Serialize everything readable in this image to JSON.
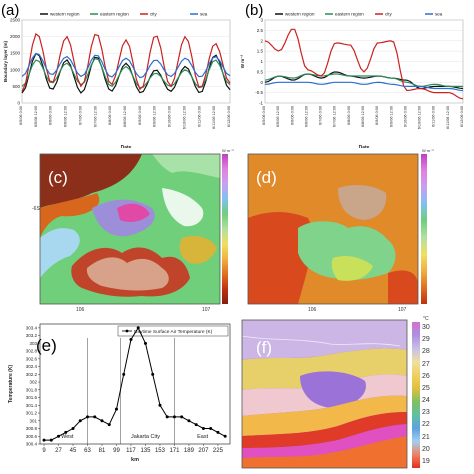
{
  "panels": {
    "a": {
      "label": "(a)",
      "ylabel": "Boundary layer (m)",
      "xlabel": "Date",
      "legend": [
        "western region",
        "eastern region",
        "city",
        "sea"
      ],
      "colors": {
        "western": "#111111",
        "eastern": "#2e8b57",
        "city": "#cc2020",
        "sea": "#2a6fd1"
      },
      "yticks": [
        "0",
        "500",
        "1000",
        "1500",
        "2000",
        "2500"
      ],
      "xticks": [
        "6/5/06 0:00",
        "6/5/06 12:00",
        "6/6/06 0:00",
        "6/6/06 12:00",
        "6/7/06 0:00",
        "6/7/06 12:00",
        "6/8/06 0:00",
        "6/8/06 12:00",
        "6/9/06 0:00",
        "6/9/06 12:00",
        "6/10/06 0:00",
        "6/10/06 12:00",
        "6/11/06 0:00",
        "6/11/06 12:00",
        "6/12/06 0:00"
      ]
    },
    "b": {
      "label": "(b)",
      "ylabel": "W m⁻²",
      "xlabel": "Date",
      "legend": [
        "western region",
        "eastern region",
        "city",
        "sea"
      ],
      "yticks": [
        "-1",
        "-0.5",
        "0",
        "0.5",
        "1",
        "1.5",
        "2",
        "2.5",
        "3"
      ],
      "xticks": [
        "6/5/06 0:00",
        "6/5/06 12:00",
        "6/6/06 0:00",
        "6/6/06 12:00",
        "6/7/06 0:00",
        "6/7/06 12:00",
        "6/8/06 0:00",
        "6/8/06 12:00",
        "6/9/06 0:00",
        "6/9/06 12:00",
        "6/10/06 0:00",
        "6/10/06 12:00",
        "6/11/06 0:00",
        "6/11/06 12:00",
        "6/12/06 0:00"
      ]
    },
    "c": {
      "label": "(c)",
      "unit": "W m⁻²",
      "scale": [
        "1450",
        "1400",
        "1350",
        "1300",
        "1250",
        "1200",
        "1150",
        "1100",
        "1050",
        "1000",
        "950",
        "900",
        "850",
        "800",
        "750",
        "700",
        "650",
        "600",
        "550",
        "500",
        "450",
        "400"
      ]
    },
    "d": {
      "label": "(d)",
      "unit": "W m⁻²",
      "scale": [
        "850",
        "800",
        "750",
        "700",
        "650",
        "600",
        "550",
        "500",
        "450",
        "400",
        "350",
        "300",
        "250",
        "200",
        "150",
        "100",
        "50"
      ]
    },
    "e": {
      "label": "(e)",
      "legend": "Daytime Surface Air Temperature (K)",
      "ylabel": "Temperature (K)",
      "xlabel": "km",
      "yticks": [
        "300.4",
        "300.5",
        "300.6",
        "300.7",
        "300.8",
        "300.9",
        "301",
        "301.1",
        "301.2",
        "301.3",
        "301.4",
        "301.5",
        "301.6",
        "301.7",
        "301.8",
        "301.9",
        "302",
        "302.1",
        "302.2",
        "302.3",
        "302.4",
        "302.5",
        "302.6",
        "302.7",
        "302.8",
        "302.9",
        "303",
        "303.1",
        "303.2",
        "303.3",
        "303.4",
        "303.5"
      ],
      "xticks": [
        "9",
        "27",
        "45",
        "63",
        "81",
        "99",
        "117",
        "135",
        "153",
        "171",
        "189",
        "207",
        "225"
      ],
      "annotations": {
        "west": "West",
        "city": "Jakarta City",
        "east": "East"
      }
    },
    "f": {
      "label": "(f)",
      "unit": "°C",
      "scale": [
        "30",
        "29",
        "28",
        "27",
        "26",
        "25",
        "24",
        "23",
        "22",
        "21",
        "20",
        "19"
      ]
    }
  },
  "chart_data": [
    {
      "type": "line",
      "title": "",
      "xlabel": "Date",
      "ylabel": "Boundary layer (m)",
      "ylim": [
        0,
        2500
      ],
      "x": [
        0,
        0.5,
        1,
        1.5,
        2,
        2.5,
        3,
        3.5,
        4,
        4.5,
        5,
        5.5,
        6,
        6.5,
        7
      ],
      "series": [
        {
          "name": "western region",
          "values": [
            300,
            1500,
            400,
            1300,
            300,
            1400,
            350,
            1200,
            300,
            1000,
            350,
            1100,
            300,
            1450,
            400
          ]
        },
        {
          "name": "eastern region",
          "values": [
            500,
            1300,
            600,
            1200,
            550,
            1350,
            500,
            1100,
            450,
            900,
            500,
            1000,
            450,
            1300,
            550
          ]
        },
        {
          "name": "city",
          "values": [
            350,
            2100,
            600,
            2000,
            500,
            2100,
            550,
            1900,
            400,
            2050,
            500,
            2000,
            450,
            1800,
            600
          ]
        },
        {
          "name": "sea",
          "values": [
            800,
            1500,
            850,
            1400,
            800,
            1450,
            780,
            1350,
            760,
            1300,
            800,
            1350,
            780,
            1400,
            820
          ]
        }
      ]
    },
    {
      "type": "line",
      "title": "",
      "xlabel": "Date",
      "ylabel": "W m⁻²",
      "ylim": [
        -1,
        3
      ],
      "x": [
        0,
        0.5,
        1,
        1.5,
        2,
        2.5,
        3,
        3.5,
        4,
        4.5,
        5,
        5.5,
        6,
        6.5,
        7
      ],
      "series": [
        {
          "name": "western region",
          "values": [
            0,
            0.3,
            0.1,
            0.4,
            0.2,
            0.5,
            0.3,
            0.2,
            0.3,
            0.2,
            0.1,
            -0.3,
            -0.2,
            -0.2,
            -0.3
          ]
        },
        {
          "name": "eastern region",
          "values": [
            0.1,
            0.3,
            0.2,
            0.4,
            0.3,
            0.4,
            0.3,
            0.3,
            0.3,
            0.2,
            0,
            -0.2,
            -0.1,
            -0.2,
            -0.2
          ]
        },
        {
          "name": "city",
          "values": [
            2,
            1.5,
            2.6,
            0.6,
            0.3,
            1.9,
            1.8,
            0.5,
            1.9,
            2.0,
            -0.4,
            -0.3,
            -0.5,
            -0.5,
            -0.8
          ]
        },
        {
          "name": "sea",
          "values": [
            -0.1,
            0,
            0,
            0,
            -0.1,
            0,
            0,
            -0.1,
            0,
            -0.1,
            -0.2,
            -0.2,
            -0.3,
            -0.3,
            -0.4
          ]
        }
      ]
    },
    {
      "type": "line",
      "title": "",
      "xlabel": "km",
      "ylabel": "Temperature (K)",
      "ylim": [
        300.4,
        303.5
      ],
      "x": [
        9,
        18,
        27,
        36,
        45,
        54,
        63,
        72,
        81,
        90,
        99,
        108,
        117,
        126,
        135,
        144,
        153,
        162,
        171,
        180,
        189,
        198,
        207,
        216,
        225,
        234
      ],
      "series": [
        {
          "name": "Daytime Surface Air Temperature (K)",
          "values": [
            300.5,
            300.5,
            300.6,
            300.7,
            300.8,
            301.0,
            301.1,
            301.1,
            301.0,
            300.9,
            301.3,
            302.2,
            303.1,
            303.4,
            303.0,
            302.2,
            301.4,
            301.1,
            301.1,
            301.1,
            301.0,
            300.9,
            300.8,
            300.8,
            300.7,
            300.6
          ]
        }
      ],
      "annotations": [
        "West",
        "Jakarta City",
        "East"
      ]
    }
  ]
}
